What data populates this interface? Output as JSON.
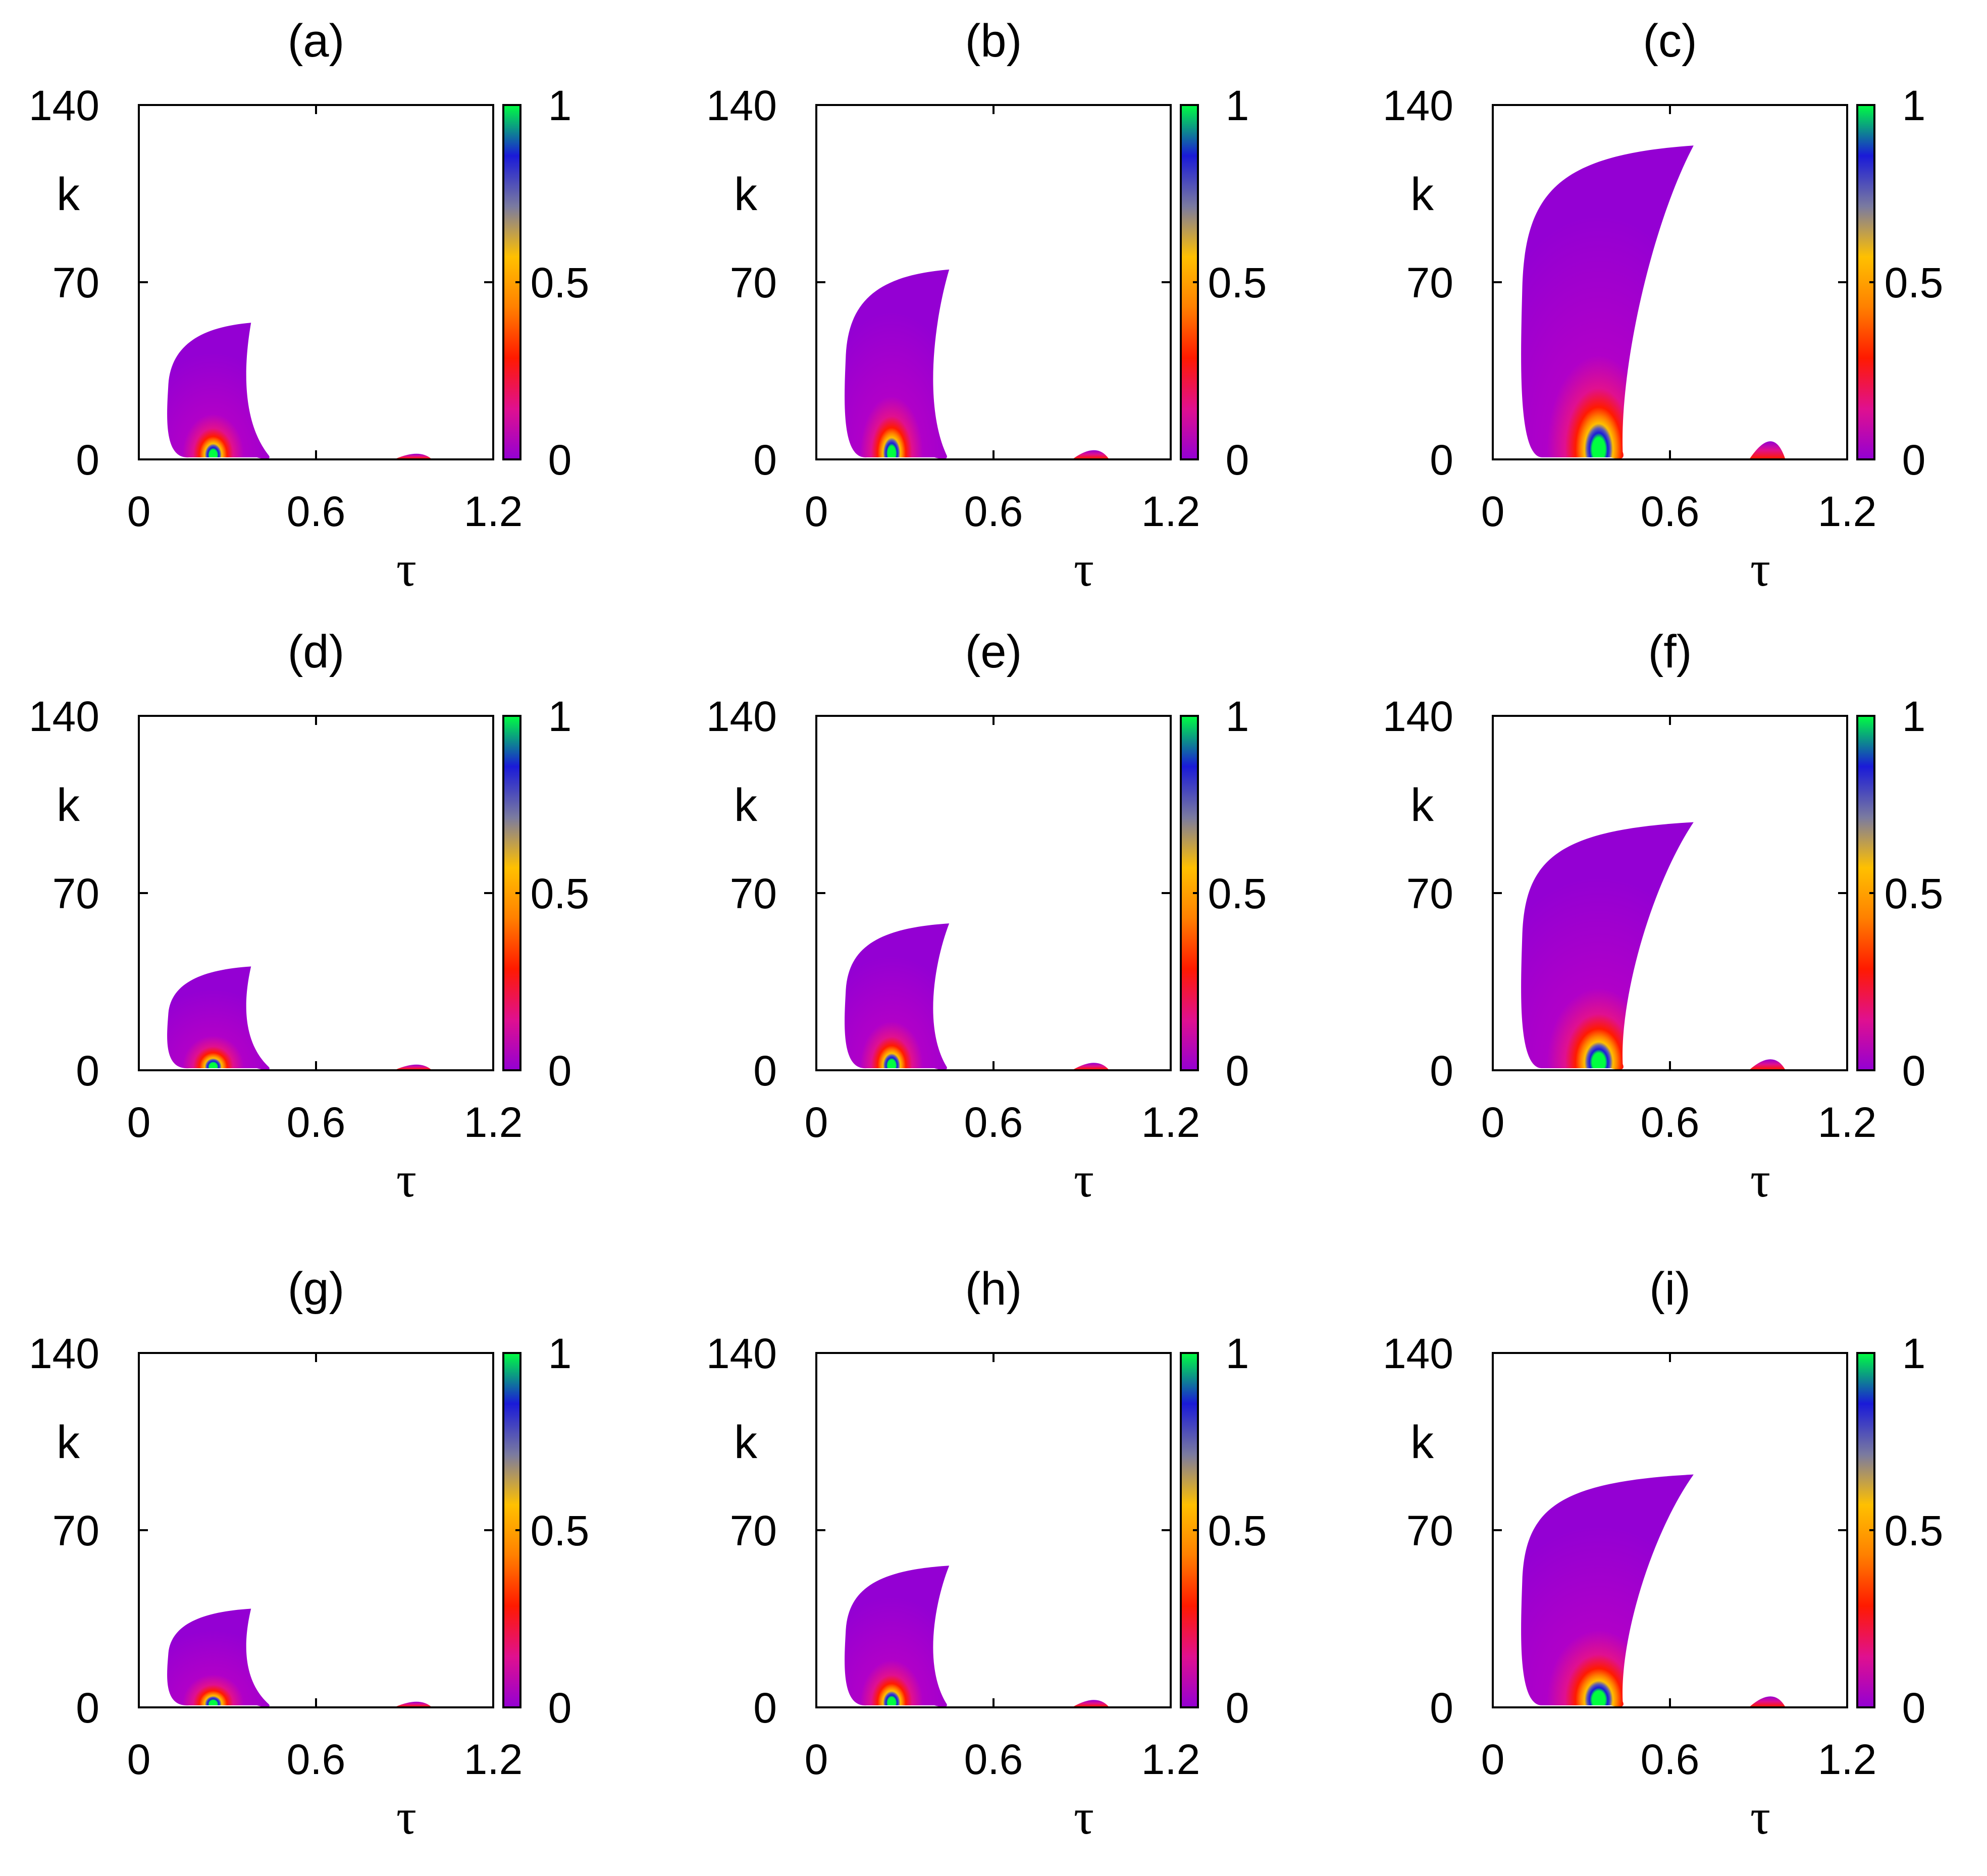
{
  "chart_data": [
    {
      "type": "heatmap",
      "label": "(a)",
      "kmax_main": 54,
      "tau_end": 0.38,
      "kmax_small": 3,
      "xlim": [
        0,
        1.2
      ],
      "ylim": [
        0,
        140
      ],
      "xticks": [
        "0",
        "0.6",
        "1.2"
      ],
      "yticks": [
        "0",
        "70",
        "140"
      ],
      "xlabel": "τ",
      "ylabel": "k",
      "colorbar": {
        "range": [
          0,
          1
        ],
        "ticks": [
          "0",
          "0.5",
          "1"
        ]
      }
    },
    {
      "type": "heatmap",
      "label": "(b)",
      "kmax_main": 75,
      "tau_end": 0.45,
      "kmax_small": 5,
      "xlim": [
        0,
        1.2
      ],
      "ylim": [
        0,
        140
      ],
      "xticks": [
        "0",
        "0.6",
        "1.2"
      ],
      "yticks": [
        "0",
        "70",
        "140"
      ],
      "xlabel": "τ",
      "ylabel": "k",
      "colorbar": {
        "range": [
          0,
          1
        ],
        "ticks": [
          "0",
          "0.5",
          "1"
        ]
      }
    },
    {
      "type": "heatmap",
      "label": "(c)",
      "kmax_main": 124,
      "tau_end": 0.68,
      "kmax_small": 10,
      "xlim": [
        0,
        1.2
      ],
      "ylim": [
        0,
        140
      ],
      "xticks": [
        "0",
        "0.6",
        "1.2"
      ],
      "yticks": [
        "0",
        "70",
        "140"
      ],
      "xlabel": "τ",
      "ylabel": "k",
      "colorbar": {
        "range": [
          0,
          1
        ],
        "ticks": [
          "0",
          "0.5",
          "1"
        ]
      }
    },
    {
      "type": "heatmap",
      "label": "(d)",
      "kmax_main": 41,
      "tau_end": 0.38,
      "kmax_small": 3,
      "xlim": [
        0,
        1.2
      ],
      "ylim": [
        0,
        140
      ],
      "xticks": [
        "0",
        "0.6",
        "1.2"
      ],
      "yticks": [
        "0",
        "70",
        "140"
      ],
      "xlabel": "τ",
      "ylabel": "k",
      "colorbar": {
        "range": [
          0,
          1
        ],
        "ticks": [
          "0",
          "0.5",
          "1"
        ]
      }
    },
    {
      "type": "heatmap",
      "label": "(e)",
      "kmax_main": 58,
      "tau_end": 0.45,
      "kmax_small": 4,
      "xlim": [
        0,
        1.2
      ],
      "ylim": [
        0,
        140
      ],
      "xticks": [
        "0",
        "0.6",
        "1.2"
      ],
      "yticks": [
        "0",
        "70",
        "140"
      ],
      "xlabel": "τ",
      "ylabel": "k",
      "colorbar": {
        "range": [
          0,
          1
        ],
        "ticks": [
          "0",
          "0.5",
          "1"
        ]
      }
    },
    {
      "type": "heatmap",
      "label": "(f)",
      "kmax_main": 98,
      "tau_end": 0.68,
      "kmax_small": 6,
      "xlim": [
        0,
        1.2
      ],
      "ylim": [
        0,
        140
      ],
      "xticks": [
        "0",
        "0.6",
        "1.2"
      ],
      "yticks": [
        "0",
        "70",
        "140"
      ],
      "xlabel": "τ",
      "ylabel": "k",
      "colorbar": {
        "range": [
          0,
          1
        ],
        "ticks": [
          "0",
          "0.5",
          "1"
        ]
      }
    },
    {
      "type": "heatmap",
      "label": "(g)",
      "kmax_main": 39,
      "tau_end": 0.38,
      "kmax_small": 3,
      "xlim": [
        0,
        1.2
      ],
      "ylim": [
        0,
        140
      ],
      "xticks": [
        "0",
        "0.6",
        "1.2"
      ],
      "yticks": [
        "0",
        "70",
        "140"
      ],
      "xlabel": "τ",
      "ylabel": "k",
      "colorbar": {
        "range": [
          0,
          1
        ],
        "ticks": [
          "0",
          "0.5",
          "1"
        ]
      }
    },
    {
      "type": "heatmap",
      "label": "(h)",
      "kmax_main": 56,
      "tau_end": 0.45,
      "kmax_small": 4,
      "xlim": [
        0,
        1.2
      ],
      "ylim": [
        0,
        140
      ],
      "xticks": [
        "0",
        "0.6",
        "1.2"
      ],
      "yticks": [
        "0",
        "70",
        "140"
      ],
      "xlabel": "τ",
      "ylabel": "k",
      "colorbar": {
        "range": [
          0,
          1
        ],
        "ticks": [
          "0",
          "0.5",
          "1"
        ]
      }
    },
    {
      "type": "heatmap",
      "label": "(i)",
      "kmax_main": 92,
      "tau_end": 0.68,
      "kmax_small": 6,
      "xlim": [
        0,
        1.2
      ],
      "ylim": [
        0,
        140
      ],
      "xticks": [
        "0",
        "0.6",
        "1.2"
      ],
      "yticks": [
        "0",
        "70",
        "140"
      ],
      "xlabel": "τ",
      "ylabel": "k",
      "colorbar": {
        "range": [
          0,
          1
        ],
        "ticks": [
          "0",
          "0.5",
          "1"
        ]
      }
    }
  ],
  "colormap": [
    "#9400d3",
    "#e0108f",
    "#ff1a00",
    "#ff8000",
    "#ffc000",
    "#7a7aa0",
    "#1a1ad8",
    "#00ff40"
  ]
}
